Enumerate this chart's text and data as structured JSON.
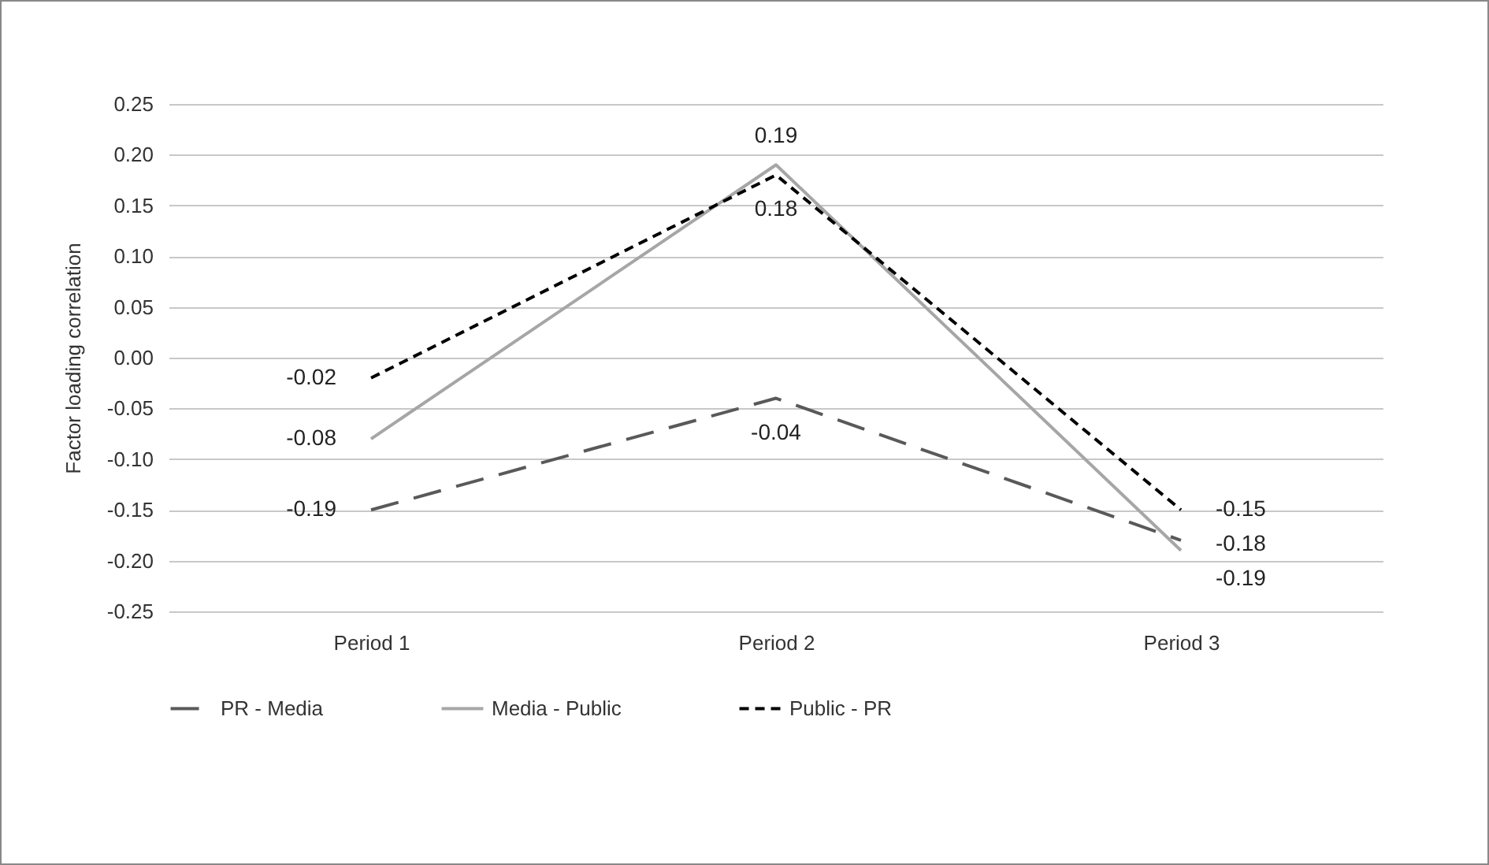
{
  "chart_data": {
    "type": "line",
    "ylabel": "Factor loading correlation",
    "categories": [
      "Period 1",
      "Period 2",
      "Period 3"
    ],
    "series": [
      {
        "name": "PR - Media",
        "color": "#595959",
        "line_style": "dashed",
        "values": [
          -0.15,
          -0.04,
          -0.18
        ],
        "value_labels": [
          null,
          "-0.04",
          "-0.18"
        ]
      },
      {
        "name": "Media - Public",
        "color": "#a6a6a6",
        "line_style": "solid",
        "values": [
          -0.08,
          0.19,
          -0.19
        ],
        "value_labels": [
          "-0.08",
          "0.19",
          "-0.19"
        ]
      },
      {
        "name": "Public - PR",
        "color": "#000000",
        "line_style": "dotted",
        "values": [
          -0.02,
          0.18,
          -0.15
        ],
        "value_labels": [
          "-0.02",
          "0.18",
          "-0.15"
        ]
      }
    ],
    "ylim": [
      -0.25,
      0.25
    ],
    "yticks": [
      {
        "value": -0.25,
        "label": "-0.25"
      },
      {
        "value": -0.2,
        "label": "-0.20"
      },
      {
        "value": -0.15,
        "label": "-0.15"
      },
      {
        "value": -0.1,
        "label": "-0.10"
      },
      {
        "value": -0.05,
        "label": "-0.05"
      },
      {
        "value": 0,
        "label": "0.00"
      },
      {
        "value": 0.05,
        "label": "0.05"
      },
      {
        "value": 0.1,
        "label": "0.10"
      },
      {
        "value": 0.15,
        "label": "0.15"
      },
      {
        "value": 0.2,
        "label": "0.20"
      },
      {
        "value": 0.25,
        "label": "0.25"
      }
    ],
    "annotations": [
      {
        "text": "-0.19",
        "x": "Period 1",
        "y": -0.15
      }
    ],
    "grid": "y",
    "legend": "bottom",
    "marker": "none"
  }
}
